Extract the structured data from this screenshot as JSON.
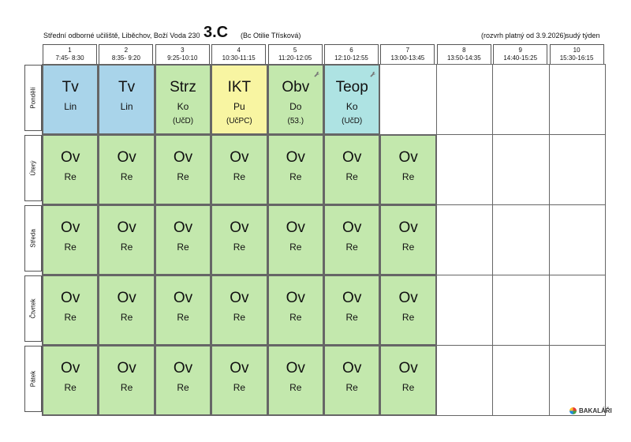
{
  "header": {
    "school": "Střední odborné učiliště, Liběchov, Boží Voda 230",
    "class_name": "3.C",
    "teacher": "(Bc Otilie Třísková)",
    "validity": "(rozvrh platný od 3.9.2026)",
    "week_type": "sudý týden"
  },
  "periods": [
    {
      "num": "1",
      "time": "7:45- 8:30"
    },
    {
      "num": "2",
      "time": "8:35- 9:20"
    },
    {
      "num": "3",
      "time": "9:25-10:10"
    },
    {
      "num": "4",
      "time": "10:30-11:15"
    },
    {
      "num": "5",
      "time": "11:20-12:05"
    },
    {
      "num": "6",
      "time": "12:10-12:55"
    },
    {
      "num": "7",
      "time": "13:00-13:45"
    },
    {
      "num": "8",
      "time": "13:50-14:35"
    },
    {
      "num": "9",
      "time": "14:40-15:25"
    },
    {
      "num": "10",
      "time": "15:30-16:15"
    }
  ],
  "days": [
    "Pondělí",
    "Úterý",
    "Středa",
    "Čtvrtek",
    "Pátek"
  ],
  "colors": {
    "blue": "#a9d4ea",
    "yellow": "#f8f5a2",
    "green": "#c3e8ad",
    "teal": "#aee3e3"
  },
  "lessons": [
    {
      "day": 0,
      "period": 0,
      "subject": "Tv",
      "teacher": "Lin",
      "room": "",
      "color": "blue",
      "icon": ""
    },
    {
      "day": 0,
      "period": 1,
      "subject": "Tv",
      "teacher": "Lin",
      "room": "",
      "color": "blue",
      "icon": ""
    },
    {
      "day": 0,
      "period": 2,
      "subject": "Strz",
      "teacher": "Ko",
      "room": "(UčD)",
      "color": "green",
      "icon": ""
    },
    {
      "day": 0,
      "period": 3,
      "subject": "IKT",
      "teacher": "Pu",
      "room": "(UčPC)",
      "color": "yellow",
      "icon": ""
    },
    {
      "day": 0,
      "period": 4,
      "subject": "Obv",
      "teacher": "Do",
      "room": "(53.)",
      "color": "green",
      "icon": "wrench-icon"
    },
    {
      "day": 0,
      "period": 5,
      "subject": "Teop",
      "teacher": "Ko",
      "room": "(UčD)",
      "color": "teal",
      "icon": "wrench-icon"
    },
    {
      "day": 1,
      "period": 0,
      "subject": "Ov",
      "teacher": "Re",
      "room": "",
      "color": "green",
      "icon": ""
    },
    {
      "day": 1,
      "period": 1,
      "subject": "Ov",
      "teacher": "Re",
      "room": "",
      "color": "green",
      "icon": ""
    },
    {
      "day": 1,
      "period": 2,
      "subject": "Ov",
      "teacher": "Re",
      "room": "",
      "color": "green",
      "icon": ""
    },
    {
      "day": 1,
      "period": 3,
      "subject": "Ov",
      "teacher": "Re",
      "room": "",
      "color": "green",
      "icon": ""
    },
    {
      "day": 1,
      "period": 4,
      "subject": "Ov",
      "teacher": "Re",
      "room": "",
      "color": "green",
      "icon": ""
    },
    {
      "day": 1,
      "period": 5,
      "subject": "Ov",
      "teacher": "Re",
      "room": "",
      "color": "green",
      "icon": ""
    },
    {
      "day": 1,
      "period": 6,
      "subject": "Ov",
      "teacher": "Re",
      "room": "",
      "color": "green",
      "icon": ""
    },
    {
      "day": 2,
      "period": 0,
      "subject": "Ov",
      "teacher": "Re",
      "room": "",
      "color": "green",
      "icon": ""
    },
    {
      "day": 2,
      "period": 1,
      "subject": "Ov",
      "teacher": "Re",
      "room": "",
      "color": "green",
      "icon": ""
    },
    {
      "day": 2,
      "period": 2,
      "subject": "Ov",
      "teacher": "Re",
      "room": "",
      "color": "green",
      "icon": ""
    },
    {
      "day": 2,
      "period": 3,
      "subject": "Ov",
      "teacher": "Re",
      "room": "",
      "color": "green",
      "icon": ""
    },
    {
      "day": 2,
      "period": 4,
      "subject": "Ov",
      "teacher": "Re",
      "room": "",
      "color": "green",
      "icon": ""
    },
    {
      "day": 2,
      "period": 5,
      "subject": "Ov",
      "teacher": "Re",
      "room": "",
      "color": "green",
      "icon": ""
    },
    {
      "day": 2,
      "period": 6,
      "subject": "Ov",
      "teacher": "Re",
      "room": "",
      "color": "green",
      "icon": ""
    },
    {
      "day": 3,
      "period": 0,
      "subject": "Ov",
      "teacher": "Re",
      "room": "",
      "color": "green",
      "icon": ""
    },
    {
      "day": 3,
      "period": 1,
      "subject": "Ov",
      "teacher": "Re",
      "room": "",
      "color": "green",
      "icon": ""
    },
    {
      "day": 3,
      "period": 2,
      "subject": "Ov",
      "teacher": "Re",
      "room": "",
      "color": "green",
      "icon": ""
    },
    {
      "day": 3,
      "period": 3,
      "subject": "Ov",
      "teacher": "Re",
      "room": "",
      "color": "green",
      "icon": ""
    },
    {
      "day": 3,
      "period": 4,
      "subject": "Ov",
      "teacher": "Re",
      "room": "",
      "color": "green",
      "icon": ""
    },
    {
      "day": 3,
      "period": 5,
      "subject": "Ov",
      "teacher": "Re",
      "room": "",
      "color": "green",
      "icon": ""
    },
    {
      "day": 3,
      "period": 6,
      "subject": "Ov",
      "teacher": "Re",
      "room": "",
      "color": "green",
      "icon": ""
    },
    {
      "day": 4,
      "period": 0,
      "subject": "Ov",
      "teacher": "Re",
      "room": "",
      "color": "green",
      "icon": ""
    },
    {
      "day": 4,
      "period": 1,
      "subject": "Ov",
      "teacher": "Re",
      "room": "",
      "color": "green",
      "icon": ""
    },
    {
      "day": 4,
      "period": 2,
      "subject": "Ov",
      "teacher": "Re",
      "room": "",
      "color": "green",
      "icon": ""
    },
    {
      "day": 4,
      "period": 3,
      "subject": "Ov",
      "teacher": "Re",
      "room": "",
      "color": "green",
      "icon": ""
    },
    {
      "day": 4,
      "period": 4,
      "subject": "Ov",
      "teacher": "Re",
      "room": "",
      "color": "green",
      "icon": ""
    },
    {
      "day": 4,
      "period": 5,
      "subject": "Ov",
      "teacher": "Re",
      "room": "",
      "color": "green",
      "icon": ""
    },
    {
      "day": 4,
      "period": 6,
      "subject": "Ov",
      "teacher": "Re",
      "room": "",
      "color": "green",
      "icon": ""
    }
  ],
  "brand": {
    "name": "BAKALÁŘI",
    "icon": "bakalari-logo-icon"
  }
}
